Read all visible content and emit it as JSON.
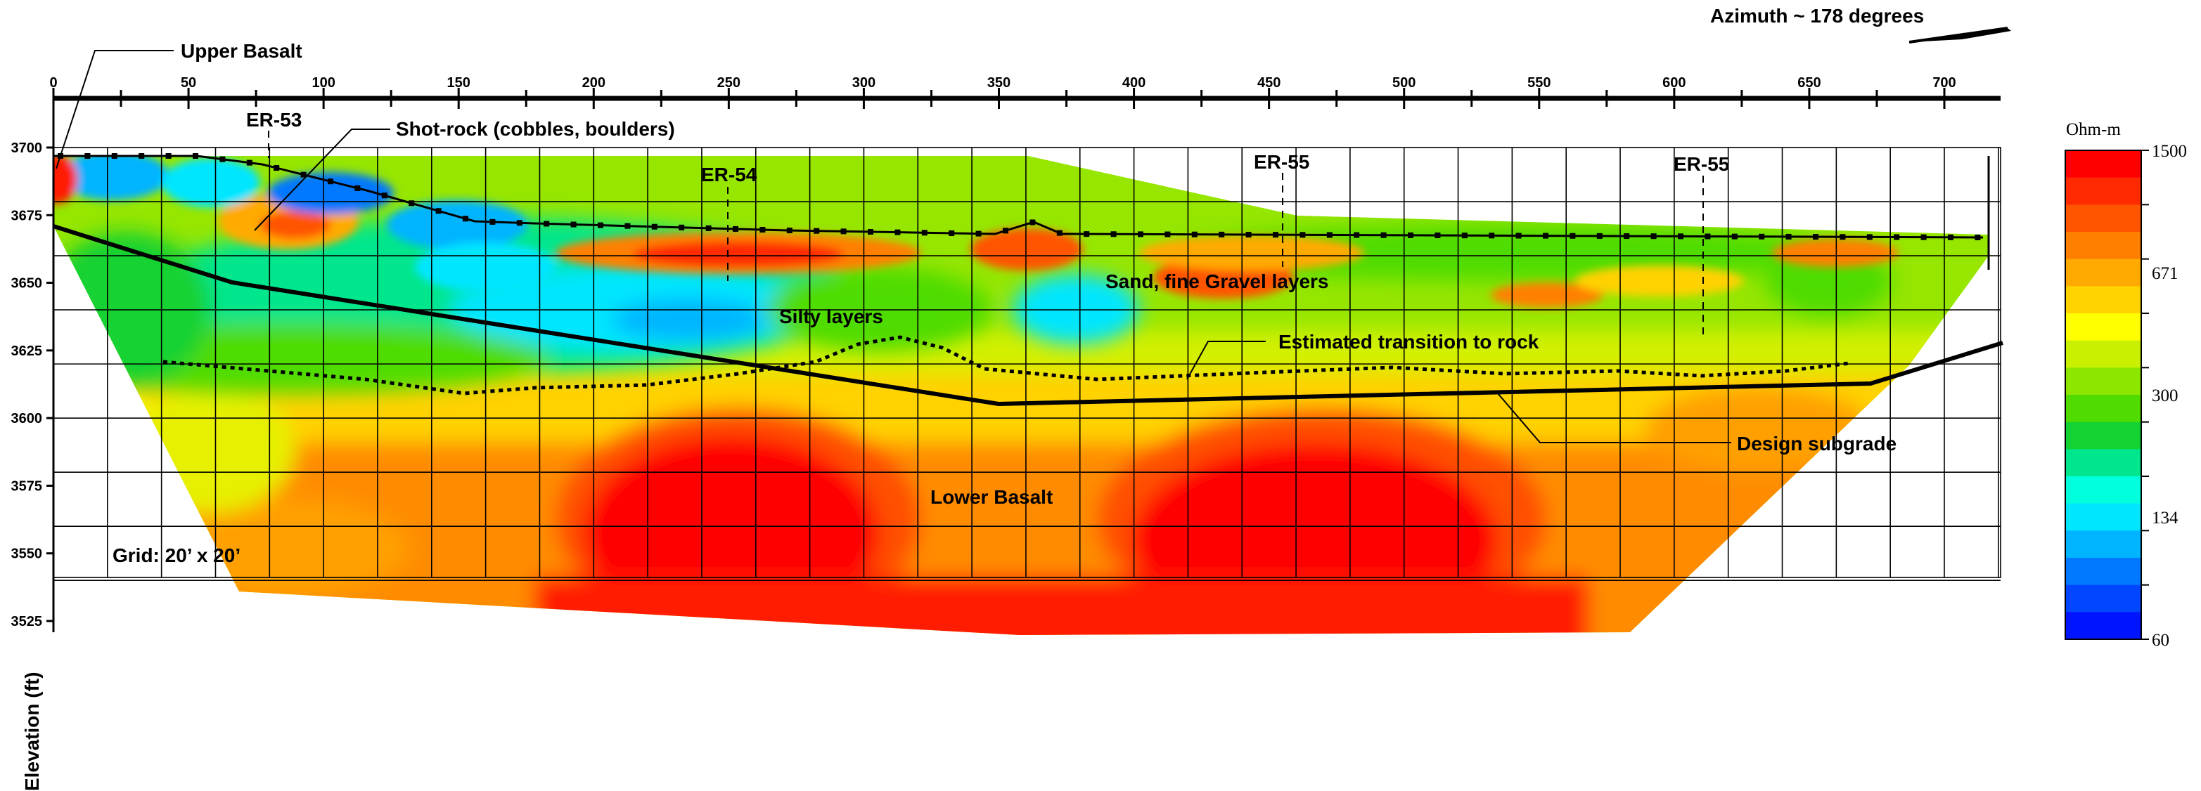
{
  "azimuth_label": "Azimuth ~ 178 degrees",
  "y_axis_title": "Elevation (ft)",
  "grid_note": "Grid: 20’ x 20’",
  "distance_ticks": [
    "0",
    "50",
    "100",
    "150",
    "200",
    "250",
    "300",
    "350",
    "400",
    "450",
    "500",
    "550",
    "600",
    "650",
    "700"
  ],
  "elevation_ticks": [
    "3700",
    "3675",
    "3650",
    "3625",
    "3600",
    "3575",
    "3550",
    "3525"
  ],
  "annotations": {
    "upper_basalt": "Upper Basalt",
    "shot_rock": "Shot-rock (cobbles, boulders)",
    "er53": "ER-53",
    "er54": "ER-54",
    "er55a": "ER-55",
    "er55b": "ER-55",
    "silty": "Silty layers",
    "sand": "Sand, fine Gravel layers",
    "transition": "Estimated transition to rock",
    "design": "Design subgrade",
    "lower_basalt": "Lower Basalt"
  },
  "colorbar": {
    "unit": "Ohm-m",
    "labels": [
      "1500",
      "671",
      "300",
      "134",
      "60"
    ],
    "colors": [
      "#ff0000",
      "#ff2a00",
      "#ff5500",
      "#ff8000",
      "#ffaa00",
      "#ffd200",
      "#ffff00",
      "#c8f000",
      "#8ce600",
      "#50dc00",
      "#14d232",
      "#00e68c",
      "#00ffdc",
      "#00e6ff",
      "#00b4ff",
      "#0078ff",
      "#0046ff",
      "#0014ff"
    ]
  }
}
